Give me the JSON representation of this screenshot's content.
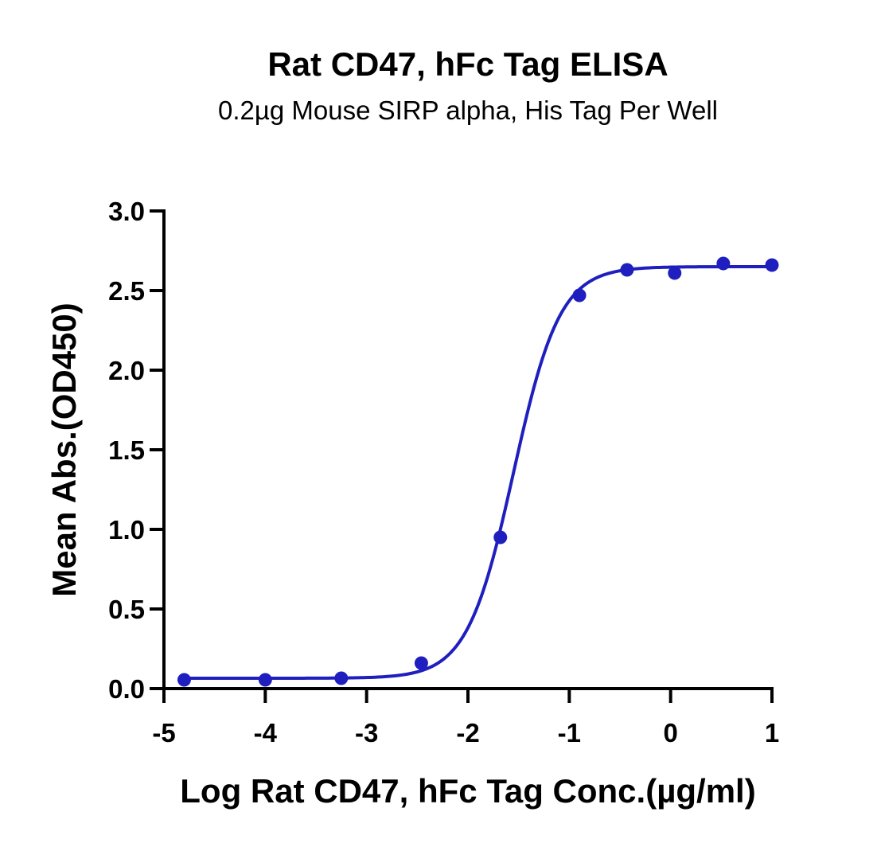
{
  "chart_data": {
    "type": "line",
    "title": "Rat CD47, hFc Tag ELISA",
    "subtitle": "0.2µg Mouse SIRP alpha, His Tag Per Well",
    "xlabel": "Log Rat CD47, hFc Tag Conc.(µg/ml)",
    "ylabel": "Mean Abs.(OD450)",
    "xlim": [
      -5,
      1
    ],
    "ylim": [
      0,
      3.0
    ],
    "xticks": [
      -5,
      -4,
      -3,
      -2,
      -1,
      0,
      1
    ],
    "xtick_labels": [
      "-5",
      "-4",
      "-3",
      "-2",
      "-1",
      "0",
      "1"
    ],
    "yticks": [
      0,
      0.5,
      1.0,
      1.5,
      2.0,
      2.5,
      3.0
    ],
    "ytick_labels": [
      "0.0",
      "0.5",
      "1.0",
      "1.5",
      "2.0",
      "2.5",
      "3.0"
    ],
    "grid": false,
    "color": "#1f1fbf",
    "series": [
      {
        "points": [
          {
            "x": -4.8,
            "y": 0.055
          },
          {
            "x": -4.0,
            "y": 0.055
          },
          {
            "x": -3.25,
            "y": 0.065
          },
          {
            "x": -2.46,
            "y": 0.16
          },
          {
            "x": -1.68,
            "y": 0.95
          },
          {
            "x": -0.9,
            "y": 2.47
          },
          {
            "x": -0.43,
            "y": 2.63
          },
          {
            "x": 0.04,
            "y": 2.61
          },
          {
            "x": 0.52,
            "y": 2.67
          },
          {
            "x": 1.0,
            "y": 2.66
          }
        ],
        "fit": {
          "model": "4PL",
          "bottom": 0.065,
          "top": 2.65,
          "logEC50": -1.55,
          "hill": 1.9
        }
      }
    ]
  }
}
